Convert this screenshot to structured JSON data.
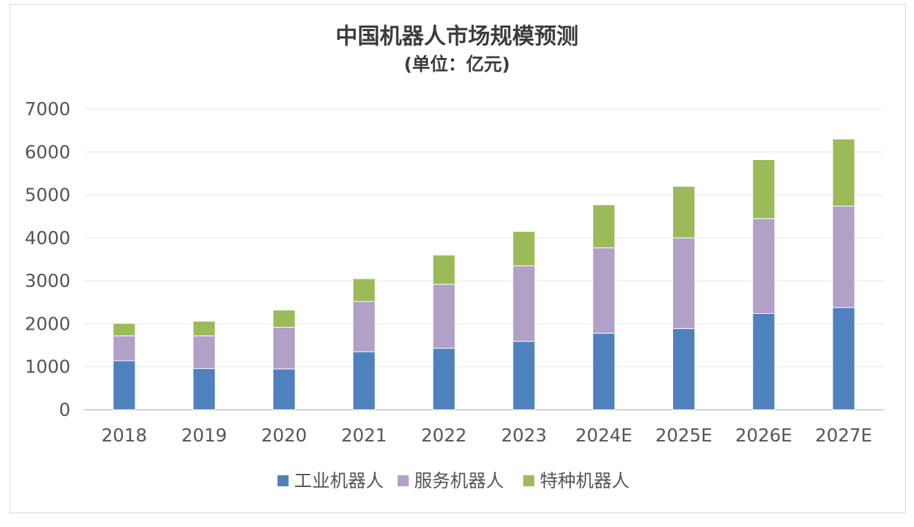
{
  "chart_data": {
    "type": "bar",
    "stacked": true,
    "title": "中国机器人市场规模预测",
    "subtitle": "(单位：亿元)",
    "categories": [
      "2018",
      "2019",
      "2020",
      "2021",
      "2022",
      "2023",
      "2024E",
      "2025E",
      "2026E",
      "2027E"
    ],
    "series": [
      {
        "name": "工业机器人",
        "color": "#4f81bd",
        "values": [
          1140,
          960,
          950,
          1350,
          1430,
          1590,
          1780,
          1890,
          2240,
          2380
        ]
      },
      {
        "name": "服务机器人",
        "color": "#b1a0c7",
        "values": [
          580,
          760,
          970,
          1170,
          1490,
          1760,
          1990,
          2110,
          2210,
          2360
        ]
      },
      {
        "name": "特种机器人",
        "color": "#9bbb59",
        "values": [
          290,
          340,
          400,
          530,
          680,
          800,
          1000,
          1200,
          1370,
          1560
        ]
      }
    ],
    "ylim": [
      0,
      7000
    ],
    "yticks": [
      0,
      1000,
      2000,
      3000,
      4000,
      5000,
      6000,
      7000
    ],
    "xlabel": "",
    "ylabel": "",
    "grid": true,
    "legend_position": "bottom"
  }
}
